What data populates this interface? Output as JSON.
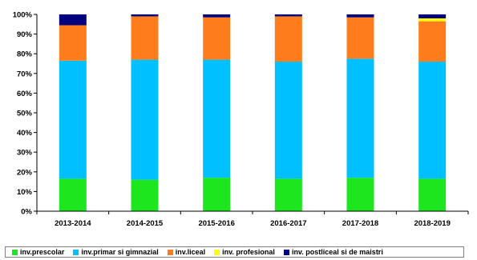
{
  "chart_data": {
    "type": "bar",
    "stacked": true,
    "title": "",
    "xlabel": "",
    "ylabel": "",
    "ylim": [
      0,
      100
    ],
    "yticks": [
      "0%",
      "10%",
      "20%",
      "30%",
      "40%",
      "50%",
      "60%",
      "70%",
      "80%",
      "90%",
      "100%"
    ],
    "grid": false,
    "legend_position": "bottom",
    "categories": [
      "2013-2014",
      "2014-2015",
      "2015-2016",
      "2016-2017",
      "2017-2018",
      "2018-2019"
    ],
    "series": [
      {
        "name": "inv.prescolar",
        "color": "#1ee61e",
        "values": [
          16.5,
          16.0,
          17.0,
          16.5,
          17.0,
          16.5
        ]
      },
      {
        "name": "inv.primar si gimnazial",
        "color": "#00c0ff",
        "values": [
          60.0,
          61.0,
          60.0,
          59.5,
          60.5,
          59.5
        ]
      },
      {
        "name": "inv.liceal",
        "color": "#ff7c1c",
        "values": [
          18.0,
          22.0,
          21.5,
          23.0,
          21.0,
          20.5
        ]
      },
      {
        "name": "inv. profesional",
        "color": "#ffff00",
        "values": [
          0.0,
          0.0,
          0.0,
          0.0,
          0.0,
          1.5
        ]
      },
      {
        "name": "inv. postliceal si de maistri",
        "color": "#00007f",
        "values": [
          5.5,
          1.0,
          1.5,
          1.0,
          1.5,
          2.0
        ]
      }
    ]
  }
}
